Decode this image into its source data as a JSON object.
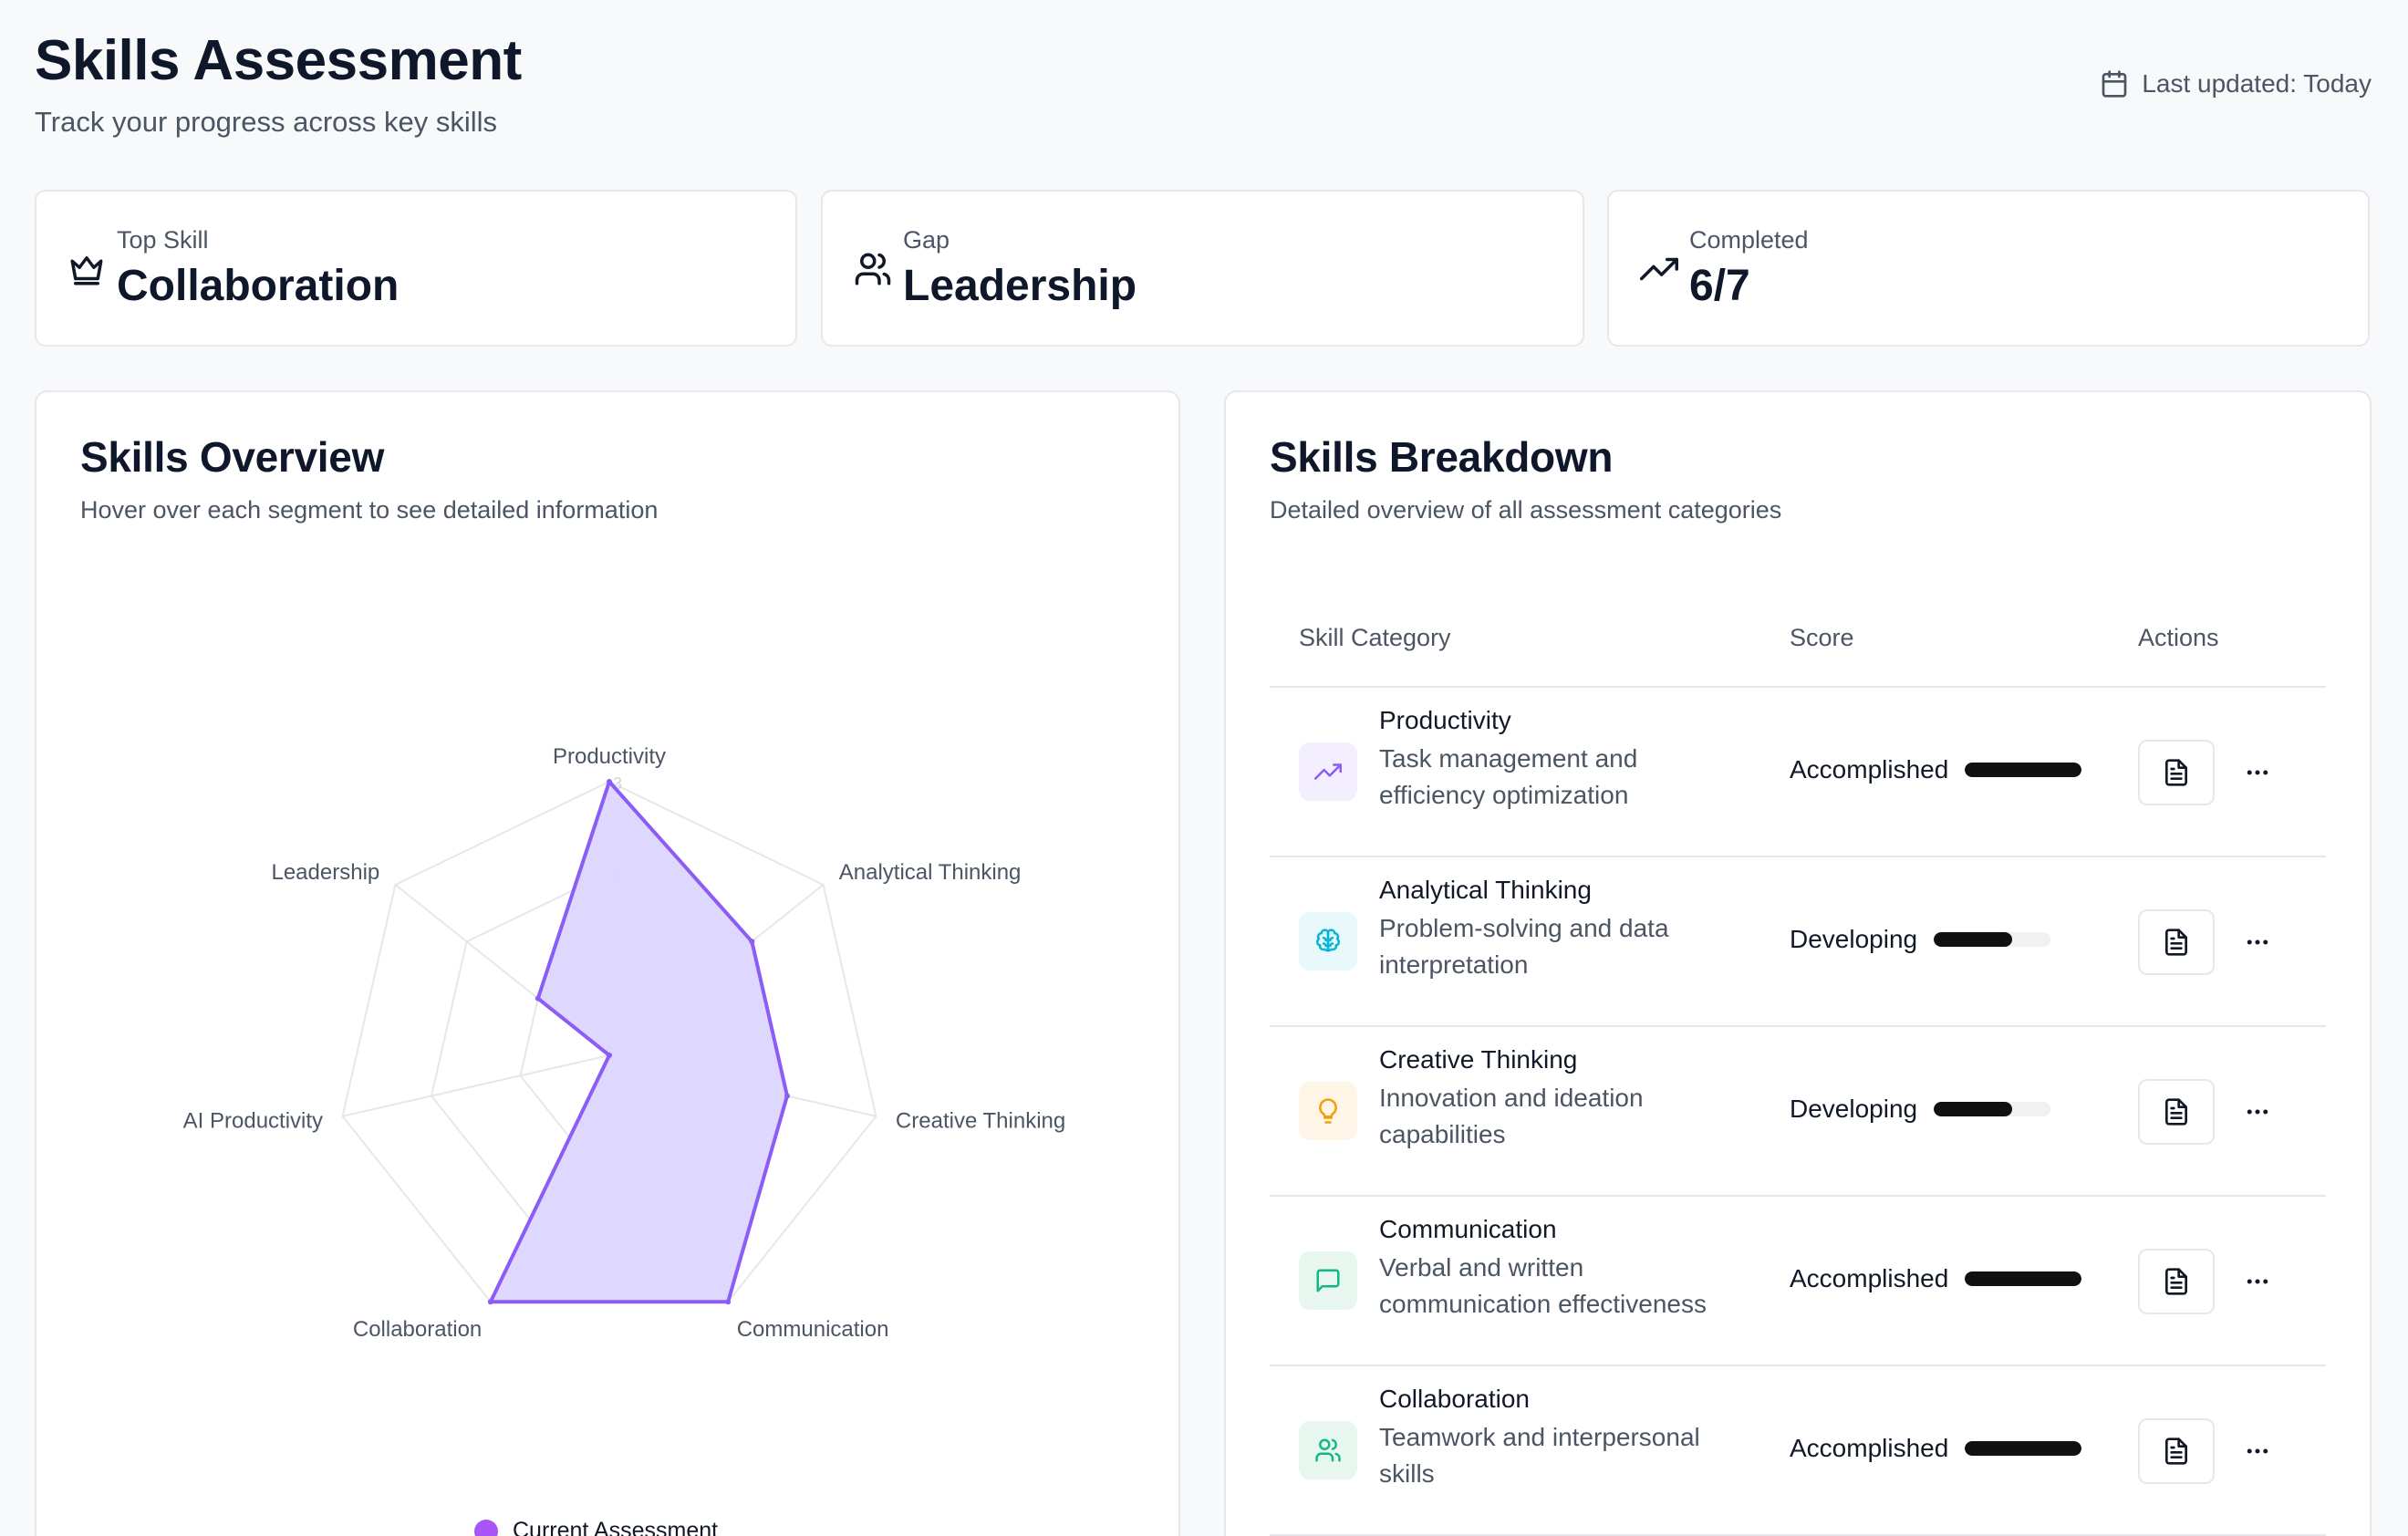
{
  "header": {
    "title": "Skills Assessment",
    "subtitle": "Track your progress across key skills",
    "last_updated": "Last updated: Today"
  },
  "stats": [
    {
      "label": "Top Skill",
      "value": "Collaboration",
      "icon": "crown-icon"
    },
    {
      "label": "Gap",
      "value": "Leadership",
      "icon": "users-icon"
    },
    {
      "label": "Completed",
      "value": "6/7",
      "icon": "trending-up-icon"
    }
  ],
  "overview": {
    "title": "Skills Overview",
    "subtitle": "Hover over each segment to see detailed information",
    "legend": "Current Assessment",
    "accent": "#8b5cf6",
    "fill": "#ddd6fe"
  },
  "chart_data": {
    "type": "radar",
    "axes": [
      "Productivity",
      "Analytical Thinking",
      "Creative Thinking",
      "Communication",
      "Collaboration",
      "AI Productivity",
      "Leadership"
    ],
    "tick_labels": [
      "1",
      "2",
      "3"
    ],
    "range": [
      0,
      3
    ],
    "series": [
      {
        "name": "Current Assessment",
        "values": [
          3,
          2,
          2,
          3,
          3,
          0,
          1
        ]
      }
    ]
  },
  "breakdown": {
    "title": "Skills Breakdown",
    "subtitle": "Detailed overview of all assessment categories",
    "columns": [
      "Skill Category",
      "Score",
      "Actions"
    ],
    "rows": [
      {
        "name": "Productivity",
        "desc": "Task management and efficiency optimization",
        "score": "Accomplished",
        "level": 1.0,
        "icon": "trending-up-icon",
        "color": "#8b5cf6",
        "bg": "#f3effe"
      },
      {
        "name": "Analytical Thinking",
        "desc": "Problem-solving and data interpretation",
        "score": "Developing",
        "level": 0.67,
        "icon": "brain-icon",
        "color": "#06b6d4",
        "bg": "#e8f8fb"
      },
      {
        "name": "Creative Thinking",
        "desc": "Innovation and ideation capabilities",
        "score": "Developing",
        "level": 0.67,
        "icon": "lightbulb-icon",
        "color": "#f59e0b",
        "bg": "#fef5e7"
      },
      {
        "name": "Communication",
        "desc": "Verbal and written communication effectiveness",
        "score": "Accomplished",
        "level": 1.0,
        "icon": "message-square-icon",
        "color": "#10b981",
        "bg": "#e7f7ef"
      },
      {
        "name": "Collaboration",
        "desc": "Teamwork and interpersonal skills",
        "score": "Accomplished",
        "level": 1.0,
        "icon": "users-icon",
        "color": "#10b981",
        "bg": "#e7f7ef"
      }
    ]
  }
}
